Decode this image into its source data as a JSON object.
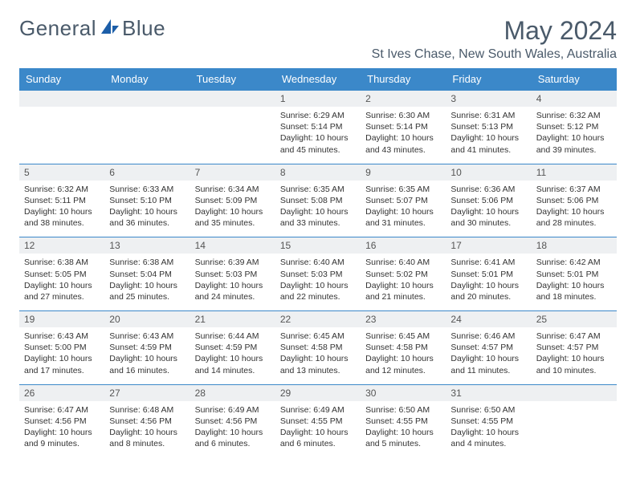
{
  "brand": {
    "part1": "General",
    "part2": "Blue"
  },
  "colors": {
    "accent": "#3b88c9",
    "header_text": "#4a5a6a",
    "daynum_bg": "#eef0f2",
    "text": "#333333",
    "bg": "#ffffff"
  },
  "title": "May 2024",
  "location": "St Ives Chase, New South Wales, Australia",
  "day_headers": [
    "Sunday",
    "Monday",
    "Tuesday",
    "Wednesday",
    "Thursday",
    "Friday",
    "Saturday"
  ],
  "typography": {
    "month_title_fontsize": 32,
    "location_fontsize": 16,
    "dayhead_fontsize": 13,
    "cell_fontsize": 10.5
  },
  "weeks": [
    [
      {
        "empty": true
      },
      {
        "empty": true
      },
      {
        "empty": true
      },
      {
        "day": "1",
        "sunrise": "Sunrise: 6:29 AM",
        "sunset": "Sunset: 5:14 PM",
        "daylight1": "Daylight: 10 hours",
        "daylight2": "and 45 minutes."
      },
      {
        "day": "2",
        "sunrise": "Sunrise: 6:30 AM",
        "sunset": "Sunset: 5:14 PM",
        "daylight1": "Daylight: 10 hours",
        "daylight2": "and 43 minutes."
      },
      {
        "day": "3",
        "sunrise": "Sunrise: 6:31 AM",
        "sunset": "Sunset: 5:13 PM",
        "daylight1": "Daylight: 10 hours",
        "daylight2": "and 41 minutes."
      },
      {
        "day": "4",
        "sunrise": "Sunrise: 6:32 AM",
        "sunset": "Sunset: 5:12 PM",
        "daylight1": "Daylight: 10 hours",
        "daylight2": "and 39 minutes."
      }
    ],
    [
      {
        "day": "5",
        "sunrise": "Sunrise: 6:32 AM",
        "sunset": "Sunset: 5:11 PM",
        "daylight1": "Daylight: 10 hours",
        "daylight2": "and 38 minutes."
      },
      {
        "day": "6",
        "sunrise": "Sunrise: 6:33 AM",
        "sunset": "Sunset: 5:10 PM",
        "daylight1": "Daylight: 10 hours",
        "daylight2": "and 36 minutes."
      },
      {
        "day": "7",
        "sunrise": "Sunrise: 6:34 AM",
        "sunset": "Sunset: 5:09 PM",
        "daylight1": "Daylight: 10 hours",
        "daylight2": "and 35 minutes."
      },
      {
        "day": "8",
        "sunrise": "Sunrise: 6:35 AM",
        "sunset": "Sunset: 5:08 PM",
        "daylight1": "Daylight: 10 hours",
        "daylight2": "and 33 minutes."
      },
      {
        "day": "9",
        "sunrise": "Sunrise: 6:35 AM",
        "sunset": "Sunset: 5:07 PM",
        "daylight1": "Daylight: 10 hours",
        "daylight2": "and 31 minutes."
      },
      {
        "day": "10",
        "sunrise": "Sunrise: 6:36 AM",
        "sunset": "Sunset: 5:06 PM",
        "daylight1": "Daylight: 10 hours",
        "daylight2": "and 30 minutes."
      },
      {
        "day": "11",
        "sunrise": "Sunrise: 6:37 AM",
        "sunset": "Sunset: 5:06 PM",
        "daylight1": "Daylight: 10 hours",
        "daylight2": "and 28 minutes."
      }
    ],
    [
      {
        "day": "12",
        "sunrise": "Sunrise: 6:38 AM",
        "sunset": "Sunset: 5:05 PM",
        "daylight1": "Daylight: 10 hours",
        "daylight2": "and 27 minutes."
      },
      {
        "day": "13",
        "sunrise": "Sunrise: 6:38 AM",
        "sunset": "Sunset: 5:04 PM",
        "daylight1": "Daylight: 10 hours",
        "daylight2": "and 25 minutes."
      },
      {
        "day": "14",
        "sunrise": "Sunrise: 6:39 AM",
        "sunset": "Sunset: 5:03 PM",
        "daylight1": "Daylight: 10 hours",
        "daylight2": "and 24 minutes."
      },
      {
        "day": "15",
        "sunrise": "Sunrise: 6:40 AM",
        "sunset": "Sunset: 5:03 PM",
        "daylight1": "Daylight: 10 hours",
        "daylight2": "and 22 minutes."
      },
      {
        "day": "16",
        "sunrise": "Sunrise: 6:40 AM",
        "sunset": "Sunset: 5:02 PM",
        "daylight1": "Daylight: 10 hours",
        "daylight2": "and 21 minutes."
      },
      {
        "day": "17",
        "sunrise": "Sunrise: 6:41 AM",
        "sunset": "Sunset: 5:01 PM",
        "daylight1": "Daylight: 10 hours",
        "daylight2": "and 20 minutes."
      },
      {
        "day": "18",
        "sunrise": "Sunrise: 6:42 AM",
        "sunset": "Sunset: 5:01 PM",
        "daylight1": "Daylight: 10 hours",
        "daylight2": "and 18 minutes."
      }
    ],
    [
      {
        "day": "19",
        "sunrise": "Sunrise: 6:43 AM",
        "sunset": "Sunset: 5:00 PM",
        "daylight1": "Daylight: 10 hours",
        "daylight2": "and 17 minutes."
      },
      {
        "day": "20",
        "sunrise": "Sunrise: 6:43 AM",
        "sunset": "Sunset: 4:59 PM",
        "daylight1": "Daylight: 10 hours",
        "daylight2": "and 16 minutes."
      },
      {
        "day": "21",
        "sunrise": "Sunrise: 6:44 AM",
        "sunset": "Sunset: 4:59 PM",
        "daylight1": "Daylight: 10 hours",
        "daylight2": "and 14 minutes."
      },
      {
        "day": "22",
        "sunrise": "Sunrise: 6:45 AM",
        "sunset": "Sunset: 4:58 PM",
        "daylight1": "Daylight: 10 hours",
        "daylight2": "and 13 minutes."
      },
      {
        "day": "23",
        "sunrise": "Sunrise: 6:45 AM",
        "sunset": "Sunset: 4:58 PM",
        "daylight1": "Daylight: 10 hours",
        "daylight2": "and 12 minutes."
      },
      {
        "day": "24",
        "sunrise": "Sunrise: 6:46 AM",
        "sunset": "Sunset: 4:57 PM",
        "daylight1": "Daylight: 10 hours",
        "daylight2": "and 11 minutes."
      },
      {
        "day": "25",
        "sunrise": "Sunrise: 6:47 AM",
        "sunset": "Sunset: 4:57 PM",
        "daylight1": "Daylight: 10 hours",
        "daylight2": "and 10 minutes."
      }
    ],
    [
      {
        "day": "26",
        "sunrise": "Sunrise: 6:47 AM",
        "sunset": "Sunset: 4:56 PM",
        "daylight1": "Daylight: 10 hours",
        "daylight2": "and 9 minutes."
      },
      {
        "day": "27",
        "sunrise": "Sunrise: 6:48 AM",
        "sunset": "Sunset: 4:56 PM",
        "daylight1": "Daylight: 10 hours",
        "daylight2": "and 8 minutes."
      },
      {
        "day": "28",
        "sunrise": "Sunrise: 6:49 AM",
        "sunset": "Sunset: 4:56 PM",
        "daylight1": "Daylight: 10 hours",
        "daylight2": "and 6 minutes."
      },
      {
        "day": "29",
        "sunrise": "Sunrise: 6:49 AM",
        "sunset": "Sunset: 4:55 PM",
        "daylight1": "Daylight: 10 hours",
        "daylight2": "and 6 minutes."
      },
      {
        "day": "30",
        "sunrise": "Sunrise: 6:50 AM",
        "sunset": "Sunset: 4:55 PM",
        "daylight1": "Daylight: 10 hours",
        "daylight2": "and 5 minutes."
      },
      {
        "day": "31",
        "sunrise": "Sunrise: 6:50 AM",
        "sunset": "Sunset: 4:55 PM",
        "daylight1": "Daylight: 10 hours",
        "daylight2": "and 4 minutes."
      },
      {
        "empty": true
      }
    ]
  ]
}
